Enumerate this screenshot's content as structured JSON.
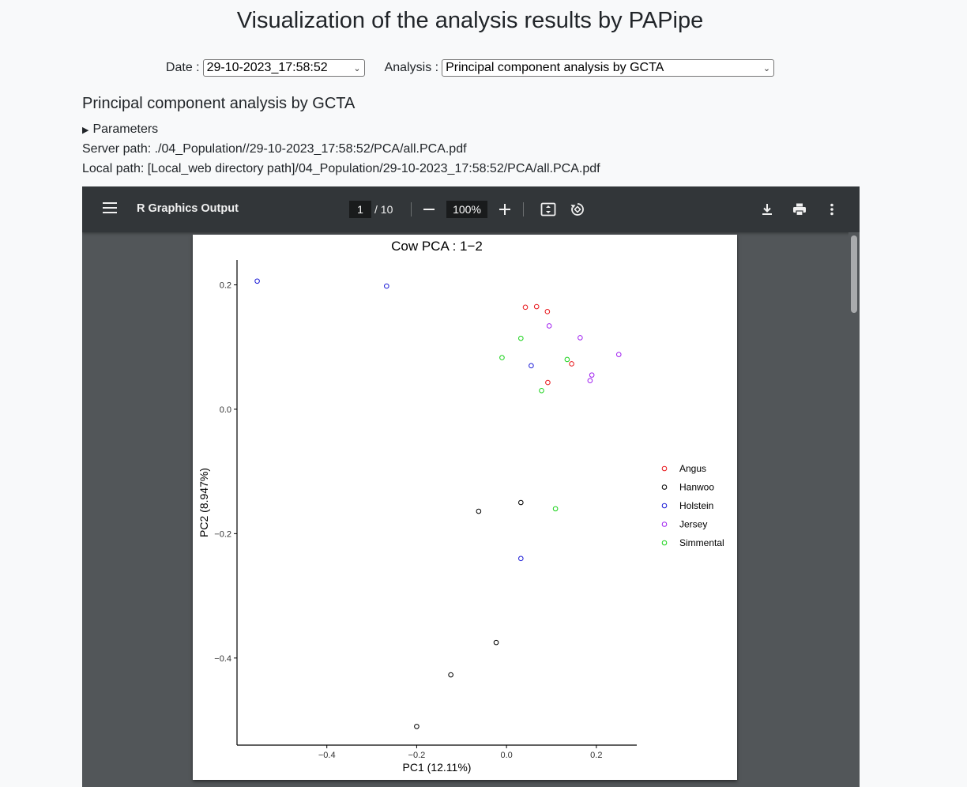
{
  "page_title": "Visualization of the analysis results by PAPipe",
  "selectors": {
    "date_label": "Date :",
    "date_value": "29-10-2023_17:58:52",
    "analysis_label": "Analysis :",
    "analysis_value": "Principal component analysis by GCTA"
  },
  "section": {
    "title": "Principal component analysis by GCTA",
    "parameters_label": "Parameters",
    "server_path": "Server path: ./04_Population//29-10-2023_17:58:52/PCA/all.PCA.pdf",
    "local_path": "Local path: [Local_web directory path]/04_Population/29-10-2023_17:58:52/PCA/all.PCA.pdf"
  },
  "viewer": {
    "doc_title": "R Graphics Output",
    "current_page": "1",
    "total_pages": "/ 10",
    "zoom": "100%",
    "icons": [
      "menu-icon",
      "zoom-out-icon",
      "zoom-in-icon",
      "fit-page-icon",
      "rotate-icon",
      "download-icon",
      "print-icon",
      "more-vert-icon"
    ]
  },
  "chart_data": {
    "type": "scatter",
    "title": "Cow PCA : 1−2",
    "xlabel": "PC1 (12.11%)",
    "ylabel": "PC2 (8.947%)",
    "xlim": [
      -0.6,
      0.29
    ],
    "ylim": [
      -0.54,
      0.24
    ],
    "xticks": [
      -0.4,
      -0.2,
      0.0,
      0.2
    ],
    "xtick_labels": [
      "−0.4",
      "−0.2",
      "0.0",
      "0.2"
    ],
    "yticks": [
      0.2,
      0.0,
      -0.2,
      -0.4
    ],
    "ytick_labels": [
      "0.2",
      "0.0",
      "−0.2",
      "−0.4"
    ],
    "grid": false,
    "legend_position": "right",
    "series": [
      {
        "name": "Angus",
        "color": "#e8161b",
        "points": [
          [
            0.042,
            0.164
          ],
          [
            0.067,
            0.165
          ],
          [
            0.091,
            0.157
          ],
          [
            0.145,
            0.073
          ],
          [
            0.092,
            0.043
          ]
        ]
      },
      {
        "name": "Hanwoo",
        "color": "#000000",
        "points": [
          [
            0.032,
            -0.15
          ],
          [
            -0.062,
            -0.164
          ],
          [
            -0.023,
            -0.375
          ],
          [
            -0.124,
            -0.427
          ],
          [
            -0.2,
            -0.51
          ]
        ]
      },
      {
        "name": "Holstein",
        "color": "#1a1ad6",
        "points": [
          [
            -0.555,
            0.206
          ],
          [
            -0.267,
            0.198
          ],
          [
            0.055,
            0.07
          ],
          [
            0.032,
            -0.24
          ]
        ]
      },
      {
        "name": "Jersey",
        "color": "#a020f0",
        "points": [
          [
            0.095,
            0.134
          ],
          [
            0.164,
            0.115
          ],
          [
            0.25,
            0.088
          ],
          [
            0.19,
            0.055
          ],
          [
            0.186,
            0.046
          ]
        ]
      },
      {
        "name": "Simmental",
        "color": "#19d219",
        "points": [
          [
            0.032,
            0.114
          ],
          [
            -0.01,
            0.083
          ],
          [
            0.135,
            0.08
          ],
          [
            0.078,
            0.03
          ],
          [
            0.109,
            -0.16
          ]
        ]
      }
    ]
  }
}
